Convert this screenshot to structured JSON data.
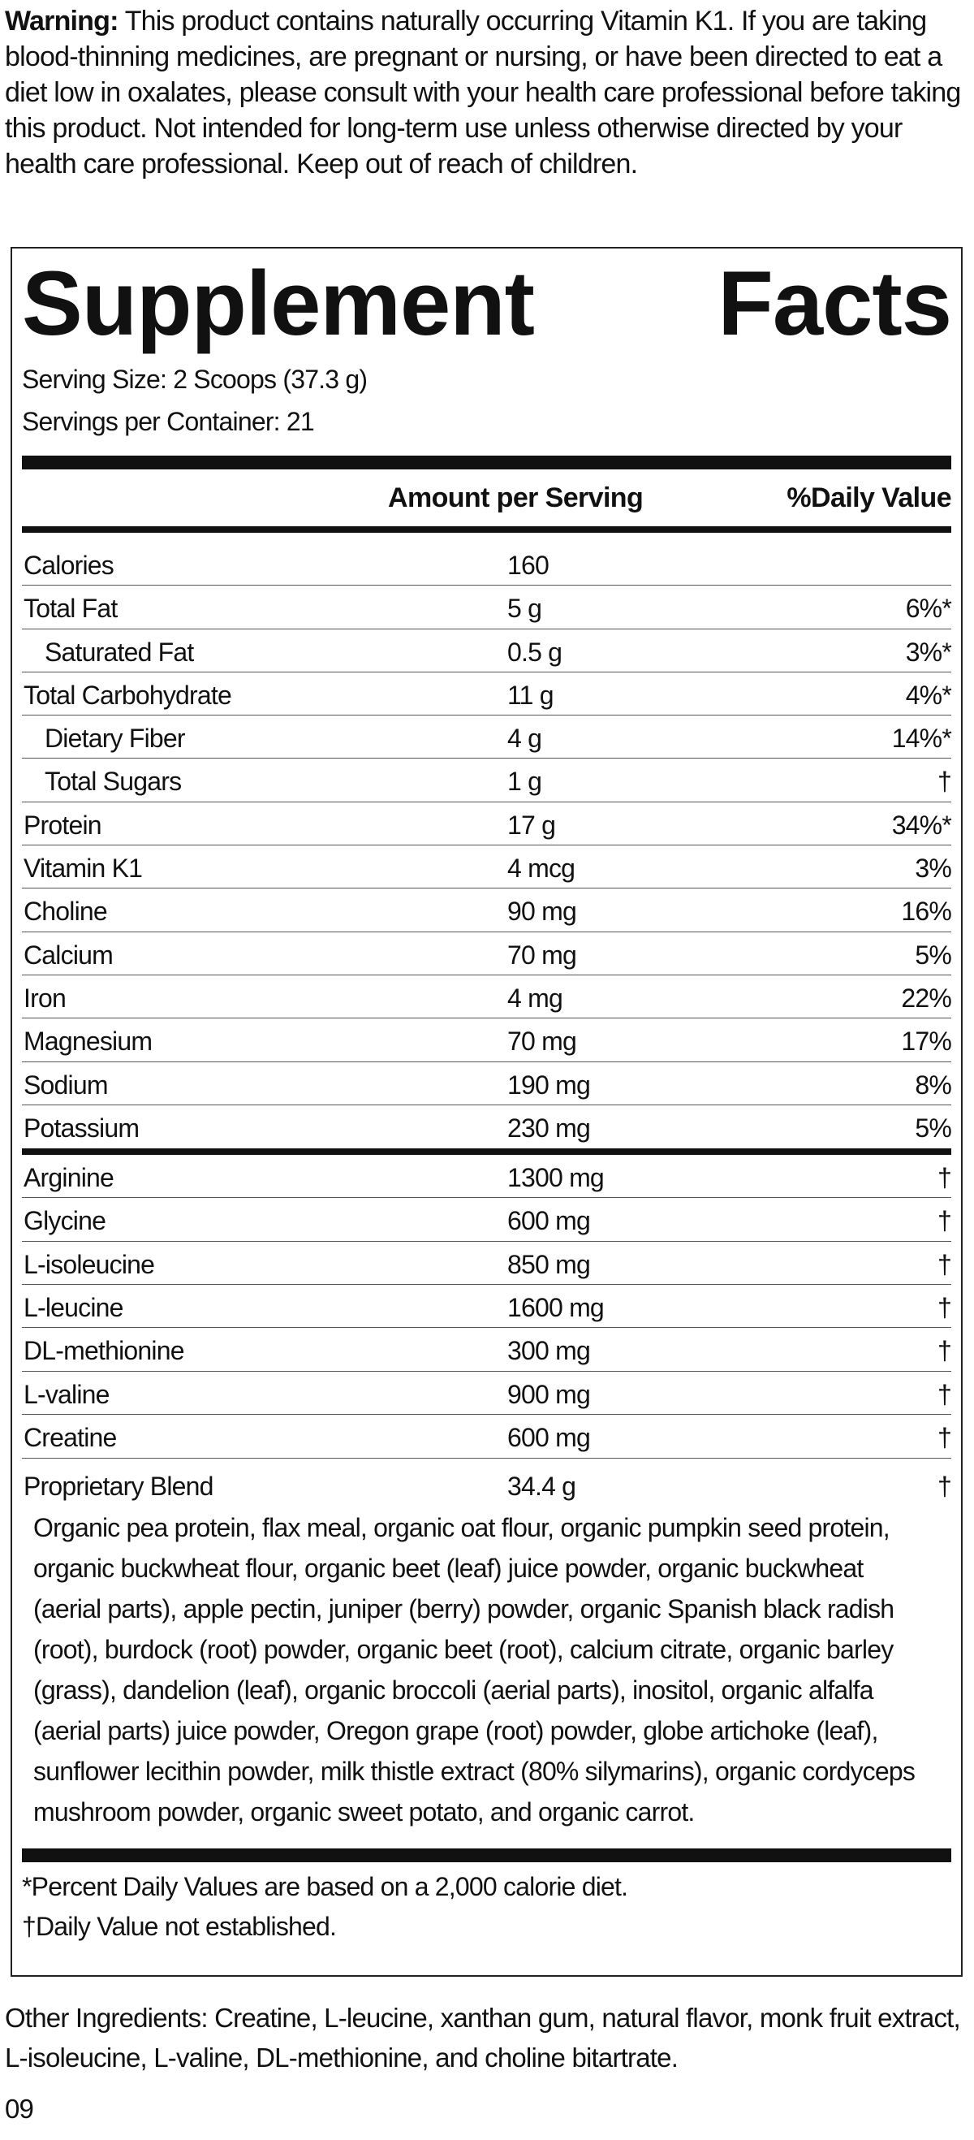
{
  "warning": {
    "label": "Warning:",
    "text": "This product contains naturally occurring Vitamin K1. If you are taking blood-thinning medicines, are pregnant or nursing, or have been directed to eat a diet low in oxalates, please consult with your health care professional before taking this product. Not intended for long-term use unless otherwise directed by your health care professional. Keep out of reach of children."
  },
  "facts": {
    "title": "Supplement Facts",
    "serving_size": "Serving Size: 2 Scoops (37.3 g)",
    "servings_per_container": "Servings per Container: 21",
    "header": {
      "amount": "Amount per Serving",
      "dv": "%Daily Value"
    },
    "nutrients": [
      {
        "name": "Calories",
        "amount": "160",
        "dv": null
      },
      {
        "name": "Total Fat",
        "amount": "5 g",
        "dv": "6%*"
      },
      {
        "name": "Saturated Fat",
        "amount": "0.5 g",
        "dv": "3%*",
        "indent": true
      },
      {
        "name": "Total Carbohydrate",
        "amount": "11 g",
        "dv": "4%*"
      },
      {
        "name": "Dietary Fiber",
        "amount": "4 g",
        "dv": "14%*",
        "indent": true
      },
      {
        "name": "Total Sugars",
        "amount": "1 g",
        "dv": "†",
        "indent": true
      },
      {
        "name": "Protein",
        "amount": "17 g",
        "dv": "34%*"
      },
      {
        "name": "Vitamin K1",
        "amount": "4 mcg",
        "dv": "3%"
      },
      {
        "name": "Choline",
        "amount": "90 mg",
        "dv": "16%"
      },
      {
        "name": "Calcium",
        "amount": "70 mg",
        "dv": "5%"
      },
      {
        "name": "Iron",
        "amount": "4 mg",
        "dv": "22%"
      },
      {
        "name": "Magnesium",
        "amount": "70 mg",
        "dv": "17%"
      },
      {
        "name": "Sodium",
        "amount": "190 mg",
        "dv": "8%"
      },
      {
        "name": "Potassium",
        "amount": "230 mg",
        "dv": "5%"
      }
    ],
    "others": [
      {
        "name": "Arginine",
        "amount": "1300 mg",
        "dv": "†"
      },
      {
        "name": "Glycine",
        "amount": "600 mg",
        "dv": "†"
      },
      {
        "name": "L-isoleucine",
        "amount": "850 mg",
        "dv": "†"
      },
      {
        "name": "L-leucine",
        "amount": "1600 mg",
        "dv": "†"
      },
      {
        "name": "DL-methionine",
        "amount": "300 mg",
        "dv": "†"
      },
      {
        "name": "L-valine",
        "amount": "900 mg",
        "dv": "†"
      },
      {
        "name": "Creatine",
        "amount": "600 mg",
        "dv": "†"
      }
    ],
    "blend": {
      "name": "Proprietary Blend",
      "amount": "34.4 g",
      "dv": "†",
      "ingredients": "Organic pea protein, flax meal, organic oat flour, organic pumpkin seed protein, organic buckwheat flour, organic beet (leaf) juice powder, organic buckwheat (aerial parts), apple pectin, juniper (berry) powder, organic Spanish black radish (root), burdock (root) powder, organic beet (root), calcium citrate, organic barley (grass), dandelion (leaf), organic broccoli (aerial parts), inositol, organic alfalfa (aerial parts) juice powder, Oregon grape (root) powder, globe artichoke (leaf), sunflower lecithin powder, milk thistle extract (80% silymarins), organic cordyceps mushroom powder, organic sweet potato, and organic carrot."
    },
    "footnotes": [
      "*Percent Daily Values are based on a 2,000 calorie diet.",
      "†Daily Value not established."
    ]
  },
  "other_ingredients": "Other Ingredients: Creatine, L-leucine, xanthan gum, natural flavor, monk fruit extract, L-isoleucine, L-valine, DL-methionine, and choline bitartrate.",
  "code": "09"
}
